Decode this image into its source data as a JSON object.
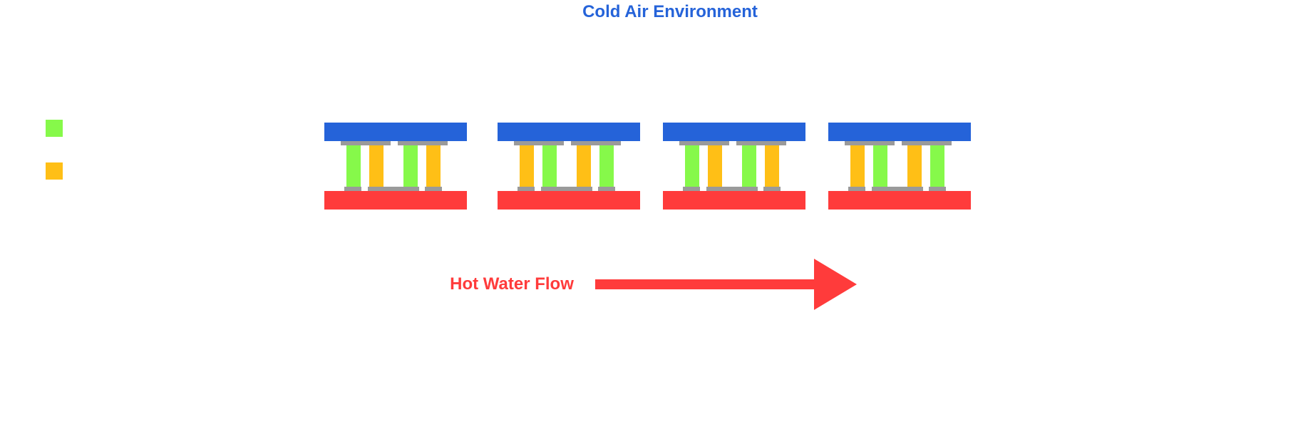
{
  "title": "Cold Air Environment",
  "flow_label": "Hot Water Flow",
  "colors": {
    "title": "#2563d9",
    "cold_plate": "#2563d9",
    "hot_plate": "#ff3b3b",
    "n_type": "#86f94a",
    "p_type": "#ffbf16",
    "connector": "#9a9a9a",
    "flow": "#ff3b3b"
  },
  "legend": [
    {
      "color": "#86f94a",
      "label": ""
    },
    {
      "color": "#ffbf16",
      "label": ""
    }
  ],
  "modules": [
    {
      "legs": [
        "n-type",
        "p-type",
        "n-type",
        "p-type"
      ]
    },
    {
      "legs": [
        "p-type",
        "n-type",
        "p-type",
        "n-type"
      ]
    },
    {
      "legs": [
        "n-type",
        "p-type",
        "n-type",
        "p-type"
      ]
    },
    {
      "legs": [
        "p-type",
        "n-type",
        "p-type",
        "n-type"
      ]
    }
  ]
}
